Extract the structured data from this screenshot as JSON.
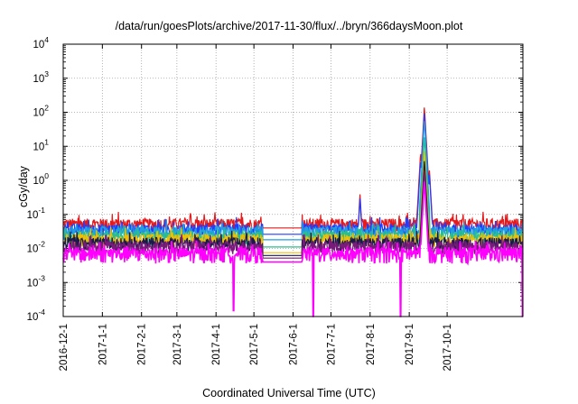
{
  "chart_data": {
    "type": "line",
    "title": "/data/run/goesPlots/archive/2017-11-30/flux/../bryn/366daysMoon.plot",
    "xlabel": "Coordinated Universal Time (UTC)",
    "ylabel": "cGy/day",
    "yscale": "log",
    "ylim": [
      0.0001,
      10000
    ],
    "yticks": [
      {
        "base": "10",
        "exp": "-4"
      },
      {
        "base": "10",
        "exp": "-3"
      },
      {
        "base": "10",
        "exp": "-2"
      },
      {
        "base": "10",
        "exp": "-1"
      },
      {
        "base": "10",
        "exp": "0"
      },
      {
        "base": "10",
        "exp": "1"
      },
      {
        "base": "10",
        "exp": "2"
      },
      {
        "base": "10",
        "exp": "3"
      },
      {
        "base": "10",
        "exp": "4"
      }
    ],
    "xlim": [
      "2016-12-01",
      "2017-11-30"
    ],
    "xticks": [
      "2016-12-1",
      "2017-1-1",
      "2017-2-1",
      "2017-3-1",
      "2017-4-1",
      "2017-5-1",
      "2017-6-1",
      "2017-7-1",
      "2017-8-1",
      "2017-9-1",
      "2017-10-1"
    ],
    "grid": true,
    "data_gap": [
      "2017-05-08",
      "2017-06-08"
    ],
    "series": [
      {
        "color": "#e41a1c",
        "baseline": 0.05,
        "gap_level": 0.04,
        "spikes": [
          [
            "2017-07-24",
            0.4
          ],
          [
            "2017-08-01",
            0.1
          ],
          [
            "2017-09-10",
            7
          ],
          [
            "2017-09-13",
            150
          ],
          [
            "2017-09-17",
            2
          ]
        ]
      },
      {
        "color": "#1f3dff",
        "baseline": 0.035,
        "gap_level": 0.026,
        "spikes": [
          [
            "2017-07-24",
            0.3
          ],
          [
            "2017-09-10",
            4
          ],
          [
            "2017-09-13",
            100
          ],
          [
            "2017-09-17",
            1.5
          ]
        ]
      },
      {
        "color": "#1fa0e0",
        "baseline": 0.03,
        "gap_level": 0.018,
        "spikes": [
          [
            "2017-09-13",
            60
          ]
        ]
      },
      {
        "color": "#2bbf8a",
        "baseline": 0.022,
        "gap_level": 0.011,
        "spikes": [
          [
            "2017-09-13",
            20
          ]
        ]
      },
      {
        "color": "#f0c000",
        "baseline": 0.018,
        "gap_level": 0.0075,
        "spikes": [
          [
            "2017-09-13",
            8
          ]
        ]
      },
      {
        "color": "#1a1a4a",
        "baseline": 0.014,
        "gap_level": 0.0062,
        "spikes": [
          [
            "2017-09-13",
            4
          ]
        ]
      },
      {
        "color": "#7a1a7a",
        "baseline": 0.011,
        "gap_level": 0.0052,
        "spikes": [
          [
            "2017-09-13",
            2
          ]
        ]
      },
      {
        "color": "#ff00ff",
        "baseline": 0.008,
        "gap_level": 0.004,
        "spikes": [
          [
            "2017-09-13",
            1
          ]
        ],
        "dropouts": [
          [
            "2017-04-15",
            0.00015
          ],
          [
            "2017-06-17",
            0.0001
          ],
          [
            "2017-08-25",
            0.0001
          ],
          [
            "2017-11-30",
            0.0001
          ]
        ]
      }
    ]
  }
}
